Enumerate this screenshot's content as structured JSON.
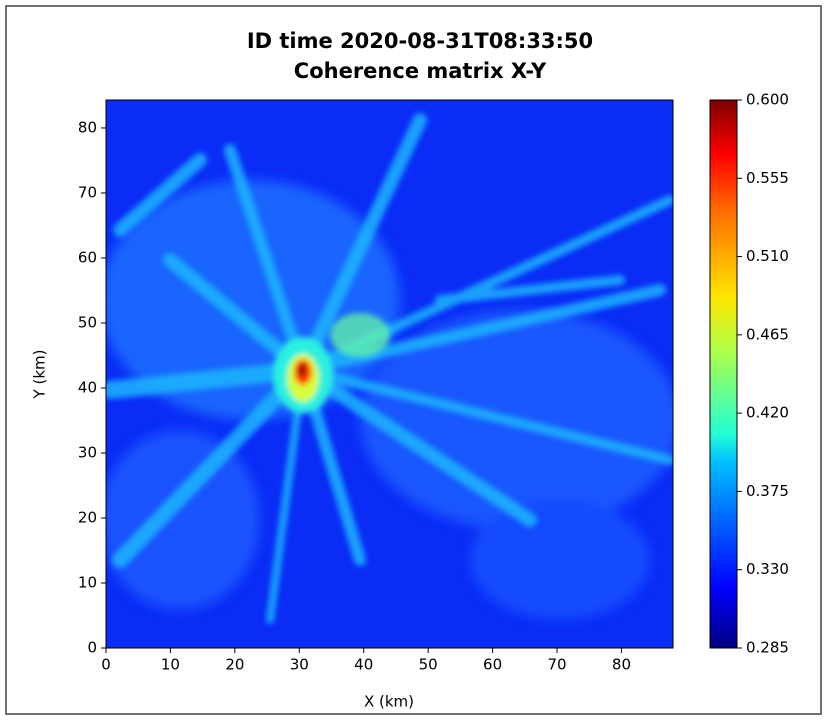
{
  "chart_data": {
    "type": "contourf",
    "title_lines": [
      "ID time 2020-08-31T08:33:50",
      "Coherence matrix X-Y"
    ],
    "x_label": "X (km)",
    "y_label": "Y (km)",
    "xlim": [
      0,
      88
    ],
    "ylim": [
      0,
      84.3
    ],
    "xticks": [
      0,
      10,
      20,
      30,
      40,
      50,
      60,
      70,
      80
    ],
    "yticks": [
      0,
      10,
      20,
      30,
      40,
      50,
      60,
      70,
      80
    ],
    "colormap": "jet",
    "clim": [
      0.285,
      0.6
    ],
    "cticks": [
      0.285,
      {
        "value": 0.33,
        "label": "0.330"
      },
      0.375,
      {
        "value": 0.42,
        "label": "0.420"
      },
      0.465,
      {
        "value": 0.51,
        "label": "0.510"
      },
      0.555,
      {
        "value": 0.6,
        "label": "0.600"
      }
    ]
  }
}
